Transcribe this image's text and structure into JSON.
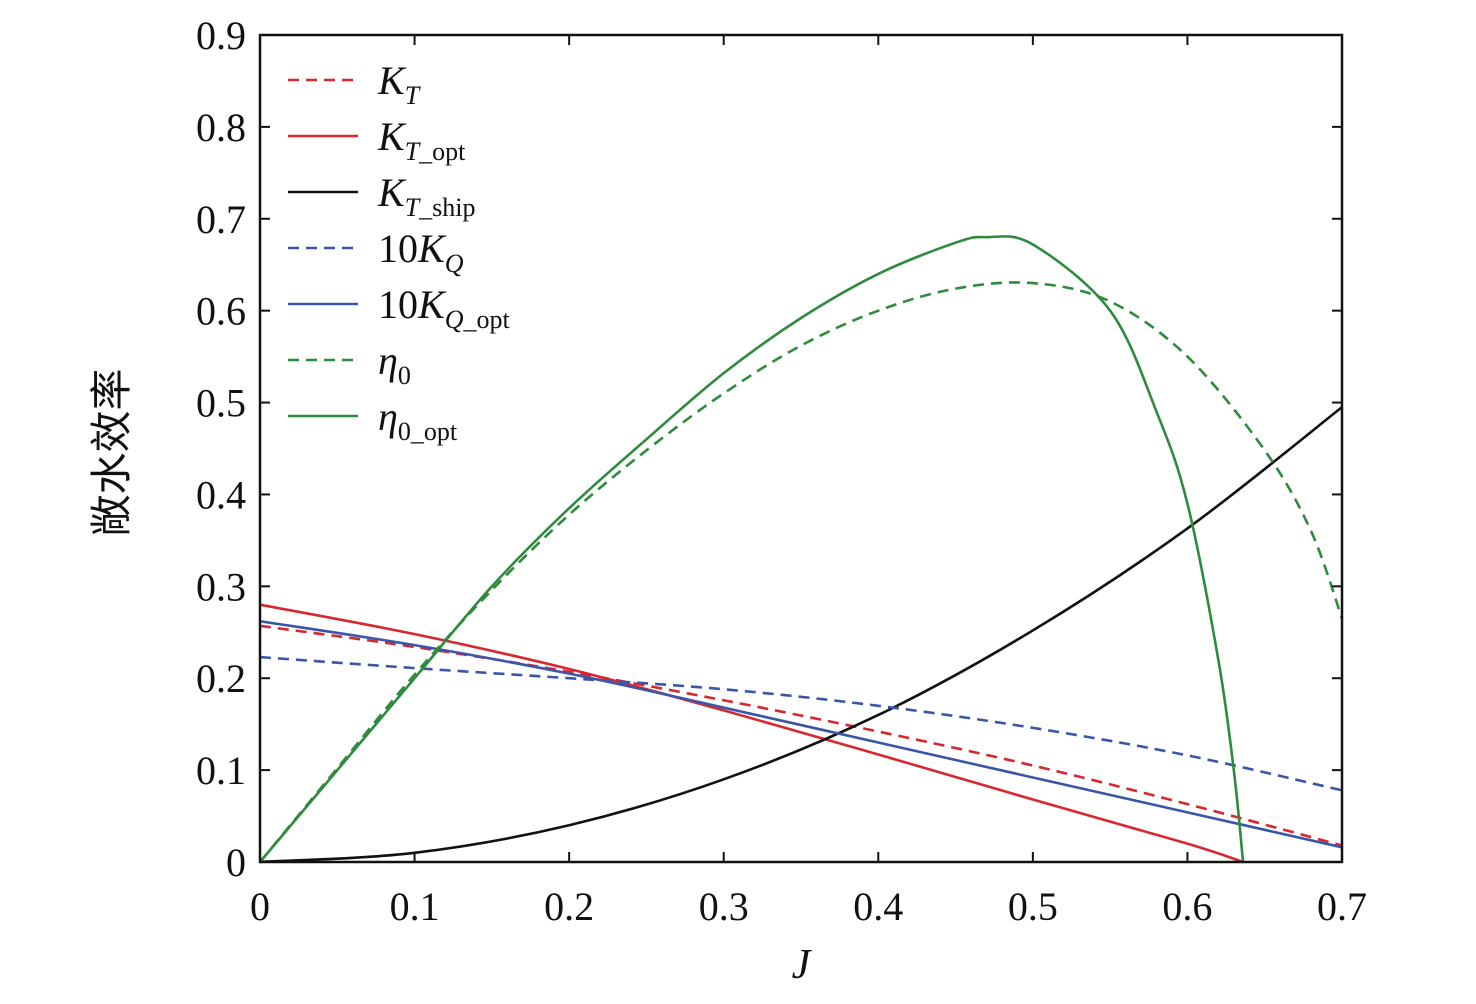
{
  "chart_data": {
    "type": "line",
    "title": "",
    "xlabel": "J",
    "ylabel": "敞水效率",
    "xlim": [
      0,
      0.7
    ],
    "ylim": [
      0,
      0.9
    ],
    "xticks": [
      "0",
      "0.1",
      "0.2",
      "0.3",
      "0.4",
      "0.5",
      "0.6",
      "0.7"
    ],
    "yticks": [
      "0",
      "0.1",
      "0.2",
      "0.3",
      "0.4",
      "0.5",
      "0.6",
      "0.7",
      "0.8",
      "0.9"
    ],
    "grid": false,
    "legend_position": "top-left",
    "series": [
      {
        "key": "KT",
        "legend": {
          "base": "K",
          "sub": "T"
        },
        "color": "#d7282f",
        "dash": true,
        "x": [
          0,
          0.1,
          0.2,
          0.3,
          0.4,
          0.5,
          0.6,
          0.7
        ],
        "y": [
          0.257,
          0.234,
          0.207,
          0.176,
          0.142,
          0.105,
          0.063,
          0.018
        ]
      },
      {
        "key": "KT_opt",
        "legend": {
          "base": "K",
          "sub": "T_opt"
        },
        "color": "#d7282f",
        "dash": false,
        "x": [
          0,
          0.1,
          0.2,
          0.3,
          0.4,
          0.5,
          0.6,
          0.636
        ],
        "y": [
          0.28,
          0.248,
          0.21,
          0.165,
          0.117,
          0.068,
          0.02,
          0.0
        ]
      },
      {
        "key": "KT_ship",
        "legend": {
          "base": "K",
          "sub": "T_ship"
        },
        "color": "#111111",
        "dash": false,
        "x": [
          0,
          0.1,
          0.2,
          0.3,
          0.4,
          0.5,
          0.6,
          0.7
        ],
        "y": [
          0.0,
          0.01,
          0.04,
          0.09,
          0.16,
          0.252,
          0.363,
          0.495
        ]
      },
      {
        "key": "10KQ",
        "legend": {
          "base": "10K",
          "sub": "Q"
        },
        "color": "#3a56a8",
        "dash": true,
        "x": [
          0,
          0.1,
          0.2,
          0.3,
          0.4,
          0.5,
          0.6,
          0.7
        ],
        "y": [
          0.223,
          0.211,
          0.2,
          0.188,
          0.17,
          0.146,
          0.116,
          0.078
        ]
      },
      {
        "key": "10KQ_opt",
        "legend": {
          "base": "10K",
          "sub": "Q_opt"
        },
        "color": "#3a56a8",
        "dash": false,
        "x": [
          0,
          0.1,
          0.2,
          0.3,
          0.4,
          0.5,
          0.6,
          0.7
        ],
        "y": [
          0.262,
          0.236,
          0.205,
          0.168,
          0.13,
          0.092,
          0.054,
          0.016
        ]
      },
      {
        "key": "eta0",
        "legend": {
          "base": "η",
          "sub": "0"
        },
        "color": "#2e8b3d",
        "dash": true,
        "x": [
          0,
          0.05,
          0.1,
          0.15,
          0.2,
          0.25,
          0.3,
          0.35,
          0.4,
          0.45,
          0.5,
          0.55,
          0.6,
          0.65,
          0.68,
          0.7
        ],
        "y": [
          0.0,
          0.102,
          0.204,
          0.296,
          0.378,
          0.448,
          0.51,
          0.562,
          0.6,
          0.624,
          0.63,
          0.61,
          0.55,
          0.448,
          0.36,
          0.265
        ]
      },
      {
        "key": "eta0_opt",
        "legend": {
          "base": "η",
          "sub": "0_opt"
        },
        "color": "#2e8b3d",
        "dash": false,
        "x": [
          0,
          0.05,
          0.1,
          0.15,
          0.2,
          0.25,
          0.3,
          0.35,
          0.4,
          0.45,
          0.47,
          0.5,
          0.55,
          0.58,
          0.6,
          0.62,
          0.63,
          0.636
        ],
        "y": [
          0.0,
          0.1,
          0.2,
          0.3,
          0.385,
          0.46,
          0.532,
          0.592,
          0.64,
          0.674,
          0.68,
          0.672,
          0.6,
          0.49,
          0.39,
          0.22,
          0.1,
          0.0
        ]
      }
    ]
  }
}
